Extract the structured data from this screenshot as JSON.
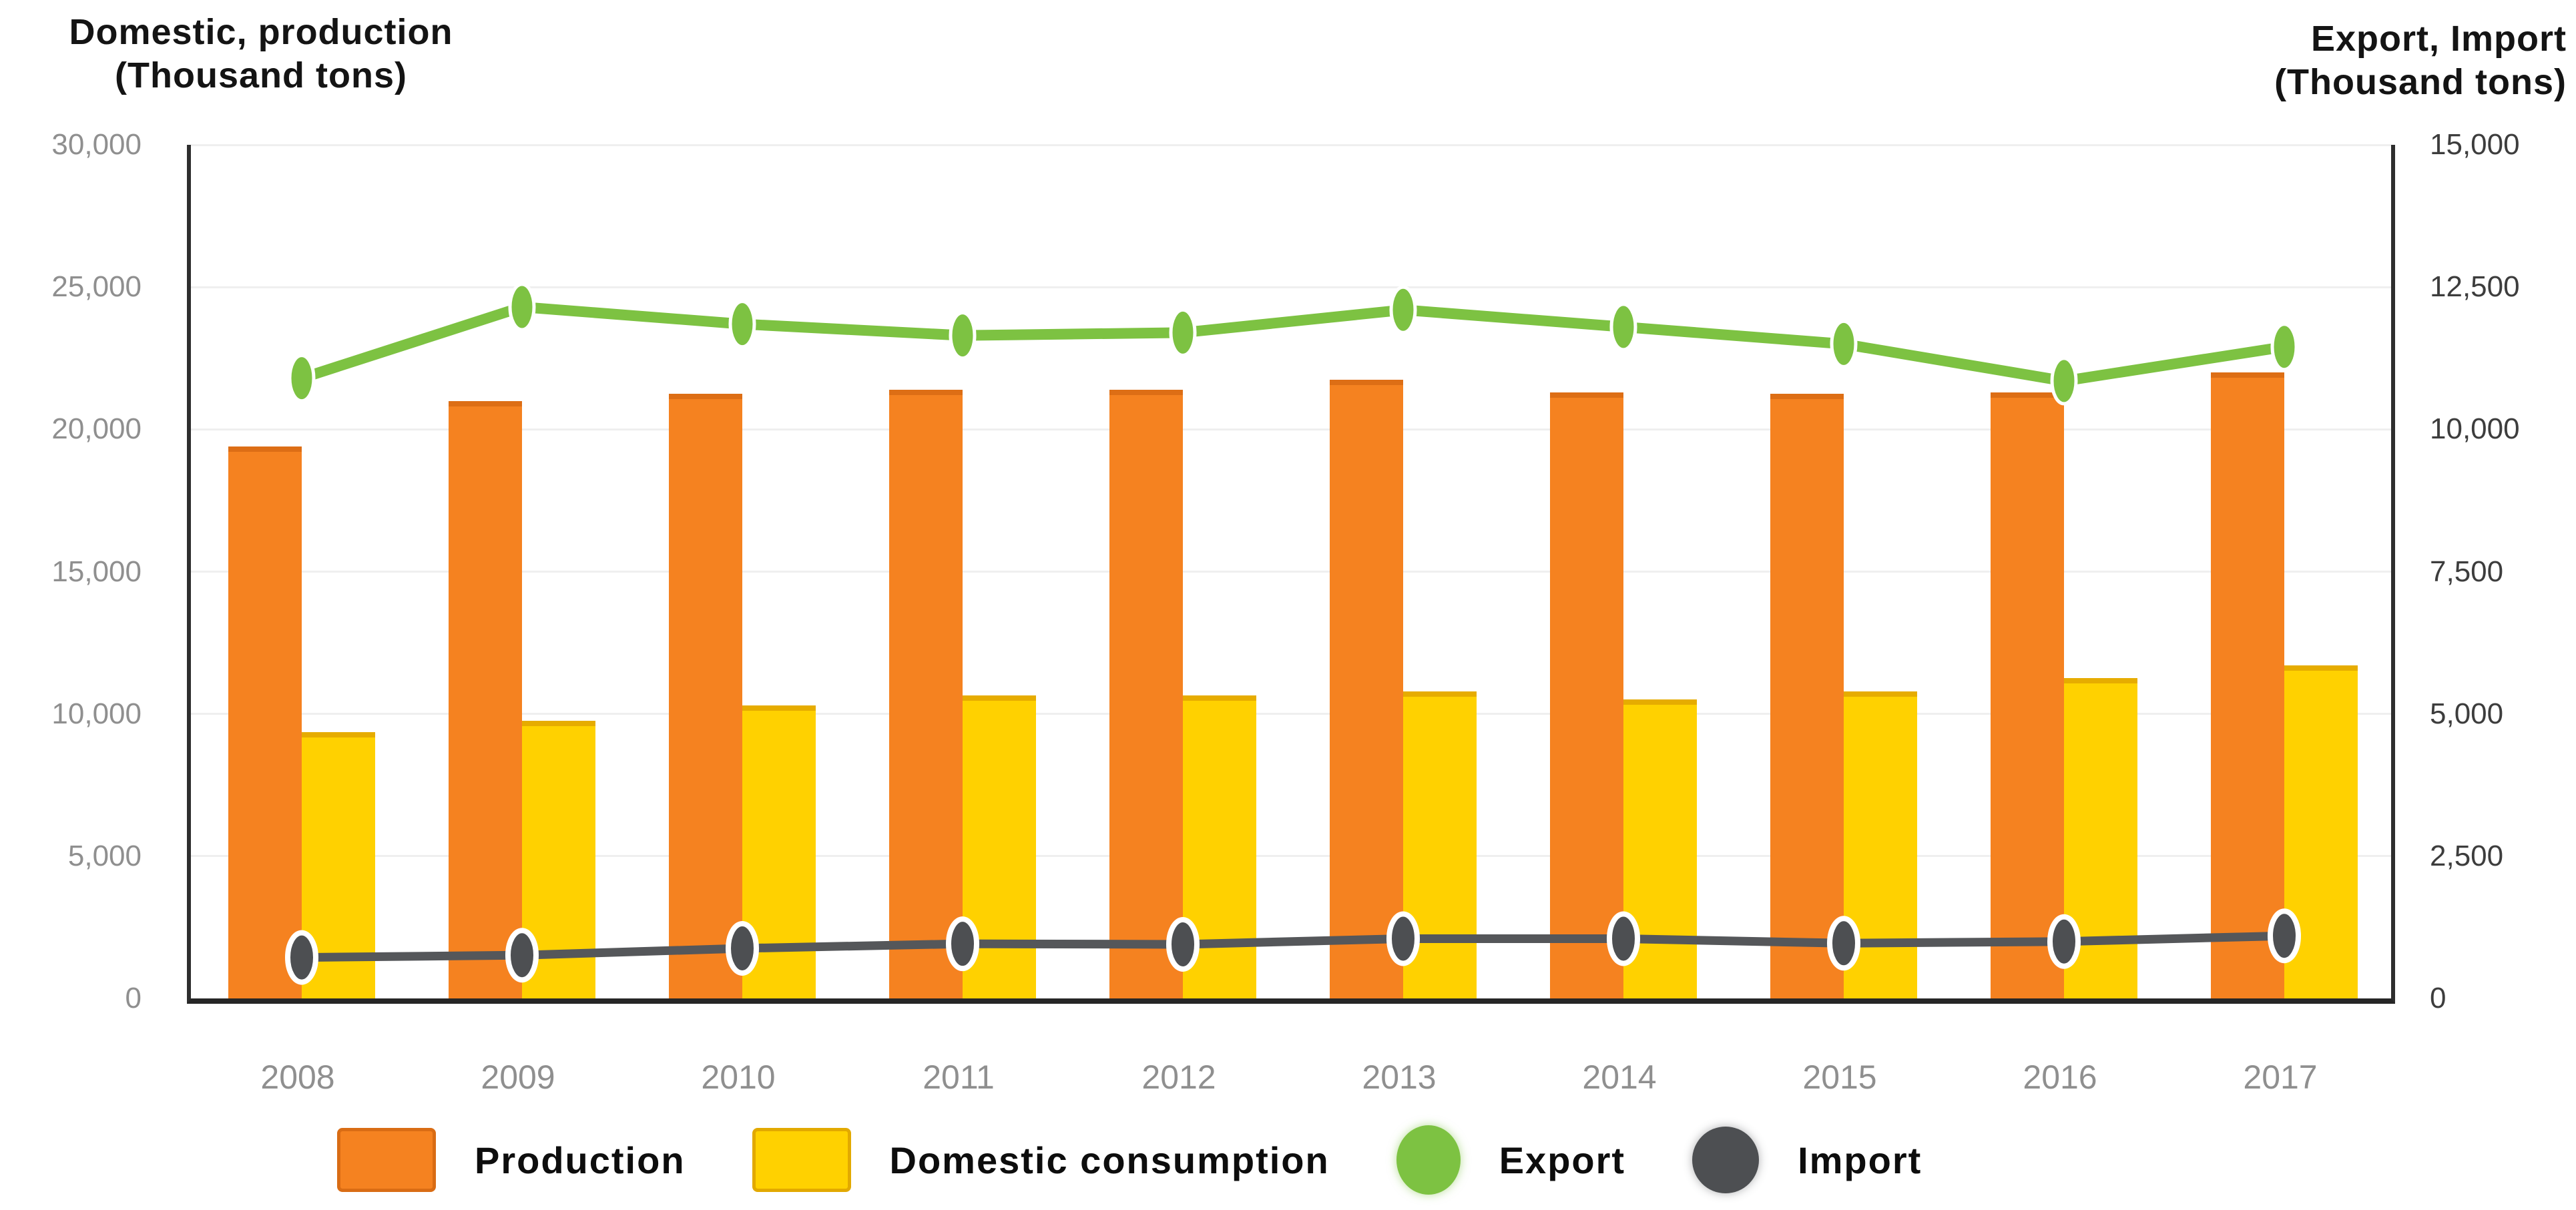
{
  "axes": {
    "left": {
      "title_line1": "Domestic, production",
      "title_line2": "(Thousand tons)",
      "tick_labels": [
        "0",
        "5,000",
        "10,000",
        "15,000",
        "20,000",
        "25,000",
        "30,000"
      ]
    },
    "right": {
      "title_line1": "Export, Import",
      "title_line2": "(Thousand tons)",
      "tick_labels": [
        "0",
        "2,500",
        "5,000",
        "7,500",
        "10,000",
        "12,500",
        "15,000"
      ]
    }
  },
  "x_axis": {
    "labels": [
      "2008",
      "2009",
      "2010",
      "2011",
      "2012",
      "2013",
      "2014",
      "2015",
      "2016",
      "2017"
    ]
  },
  "legend": {
    "items": [
      {
        "label": "Production",
        "color": "#F58220"
      },
      {
        "label": "Domestic consumption",
        "color": "#FFD100"
      },
      {
        "label": "Export",
        "color": "#7DC242"
      },
      {
        "label": "Import",
        "color": "#4D4F52"
      }
    ]
  },
  "chart_data": {
    "type": "combo",
    "categories": [
      "2008",
      "2009",
      "2010",
      "2011",
      "2012",
      "2013",
      "2014",
      "2015",
      "2016",
      "2017"
    ],
    "series": [
      {
        "name": "Production",
        "type": "bar",
        "axis": "left",
        "color": "#F58220",
        "border_color": "#DD6E15",
        "values": [
          19400,
          21000,
          21250,
          21400,
          21400,
          21750,
          21300,
          21250,
          21300,
          22000
        ]
      },
      {
        "name": "Domestic consumption",
        "type": "bar",
        "axis": "left",
        "color": "#FFD100",
        "border_color": "#E6AC00",
        "values": [
          9350,
          9750,
          10300,
          10650,
          10650,
          10800,
          10500,
          10800,
          11250,
          11700
        ]
      },
      {
        "name": "Export",
        "type": "line",
        "axis": "right",
        "color": "#7DC242",
        "marker_color": "#7DC242",
        "values": [
          10900,
          12150,
          11850,
          11650,
          11700,
          12100,
          11800,
          11500,
          10850,
          11450
        ]
      },
      {
        "name": "Import",
        "type": "line",
        "axis": "right",
        "color": "#55575A",
        "marker_color": "#4D4F52",
        "values": [
          720,
          760,
          880,
          960,
          950,
          1050,
          1050,
          970,
          1000,
          1100
        ]
      }
    ],
    "left_axis": {
      "title": "Domestic, production (Thousand tons)",
      "min": 0,
      "max": 30000,
      "step": 5000
    },
    "right_axis": {
      "title": "Export, Import (Thousand tons)",
      "min": 0,
      "max": 15000,
      "step": 2500
    },
    "grid": true,
    "legend_position": "bottom"
  }
}
